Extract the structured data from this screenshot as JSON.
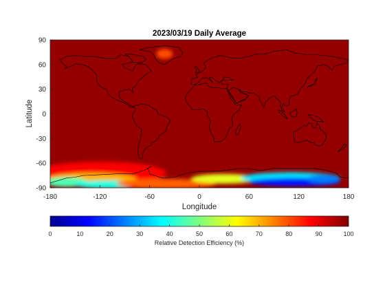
{
  "chart_data": {
    "type": "heatmap",
    "title": "2023/03/19 Daily Average",
    "xlabel": "Longitude",
    "ylabel": "Latitude",
    "xlim": [
      -180,
      180
    ],
    "ylim": [
      -90,
      90
    ],
    "x_ticks": [
      -180,
      -120,
      -60,
      0,
      60,
      120,
      180
    ],
    "y_ticks": [
      90,
      60,
      30,
      0,
      -30,
      -60,
      -90
    ],
    "grid": false,
    "colormap": "jet",
    "colorbar": {
      "label": "Relative Detection Efficiency (%)",
      "range": [
        0,
        100
      ],
      "ticks": [
        0,
        10,
        20,
        30,
        40,
        50,
        60,
        70,
        80,
        90,
        100
      ],
      "location": "bottom"
    },
    "field_summary": {
      "background_value": 98,
      "greenland_minimum": 80,
      "south_pacific_edge_value": 80,
      "antarctic_coast_value": 60,
      "east_antarctica_minimum": 10,
      "west_antarctica_minimum": 20
    },
    "colors": {
      "frame": "#262626",
      "coastline": "#000000",
      "background_fill": "#8a0000"
    }
  }
}
